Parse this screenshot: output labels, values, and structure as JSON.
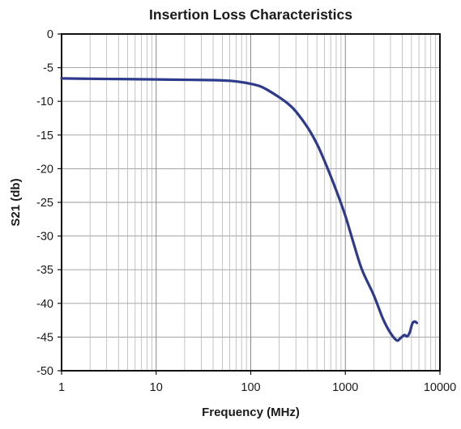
{
  "chart_data": {
    "type": "line",
    "title": "Insertion Loss Characteristics",
    "xlabel": "Frequency (MHz)",
    "ylabel": "S21 (db)",
    "x_scale": "log",
    "xlim": [
      1,
      10000
    ],
    "ylim": [
      -50,
      0
    ],
    "x_ticks": [
      1,
      10,
      100,
      1000,
      10000
    ],
    "x_tick_labels": [
      "1",
      "10",
      "100",
      "1000",
      "10000"
    ],
    "y_ticks": [
      0,
      -5,
      -10,
      -15,
      -20,
      -25,
      -30,
      -35,
      -40,
      -45,
      -50
    ],
    "y_tick_labels": [
      "0",
      "-5",
      "-10",
      "-15",
      "-20",
      "-25",
      "-30",
      "-35",
      "-40",
      "-45",
      "-50"
    ],
    "grid": true,
    "line_color": "#2e3a8c",
    "series": [
      {
        "x": [
          1,
          2,
          5,
          10,
          20,
          40,
          60,
          80,
          100,
          125,
          150,
          200,
          250,
          300,
          400,
          500,
          600,
          800,
          1000,
          1200,
          1500,
          2000,
          2500,
          3000,
          3500,
          3800,
          4200,
          4500,
          4800,
          5100,
          5400,
          5700
        ],
        "y": [
          -6.6,
          -6.65,
          -6.7,
          -6.75,
          -6.8,
          -6.85,
          -6.95,
          -7.15,
          -7.4,
          -7.75,
          -8.3,
          -9.4,
          -10.4,
          -11.5,
          -13.9,
          -16.3,
          -18.8,
          -23.2,
          -27.0,
          -30.7,
          -35.0,
          -38.8,
          -42.3,
          -44.4,
          -45.5,
          -45.2,
          -44.7,
          -44.9,
          -44.3,
          -43.0,
          -42.7,
          -42.9
        ]
      }
    ]
  }
}
